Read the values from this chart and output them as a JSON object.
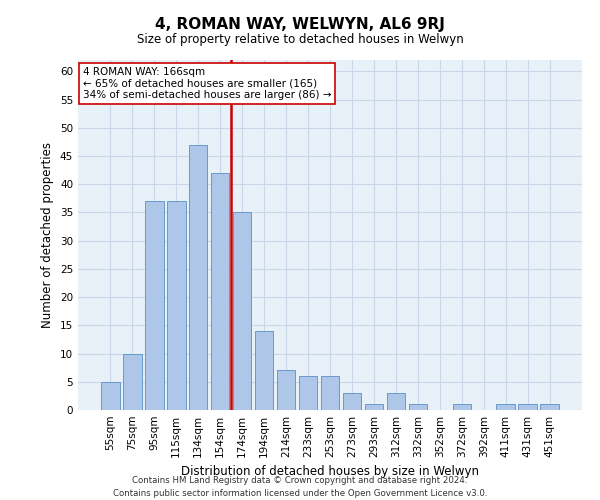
{
  "title1": "4, ROMAN WAY, WELWYN, AL6 9RJ",
  "title2": "Size of property relative to detached houses in Welwyn",
  "xlabel": "Distribution of detached houses by size in Welwyn",
  "ylabel": "Number of detached properties",
  "categories": [
    "55sqm",
    "75sqm",
    "95sqm",
    "115sqm",
    "134sqm",
    "154sqm",
    "174sqm",
    "194sqm",
    "214sqm",
    "233sqm",
    "253sqm",
    "273sqm",
    "293sqm",
    "312sqm",
    "332sqm",
    "352sqm",
    "372sqm",
    "392sqm",
    "411sqm",
    "431sqm",
    "451sqm"
  ],
  "values": [
    5,
    10,
    37,
    37,
    47,
    42,
    35,
    14,
    7,
    6,
    6,
    3,
    1,
    3,
    1,
    0,
    1,
    0,
    1,
    1,
    1
  ],
  "bar_color": "#aec6e8",
  "bar_edge_color": "#6699cc",
  "grid_color": "#c8d8e8",
  "bg_color": "#e8f0f8",
  "property_line_color": "#cc0000",
  "annotation_text": "4 ROMAN WAY: 166sqm\n← 65% of detached houses are smaller (165)\n34% of semi-detached houses are larger (86) →",
  "annotation_box_color": "#ffffff",
  "annotation_box_edge": "#cc0000",
  "footer": "Contains HM Land Registry data © Crown copyright and database right 2024.\nContains public sector information licensed under the Open Government Licence v3.0.",
  "ylim": [
    0,
    62
  ],
  "yticks": [
    0,
    5,
    10,
    15,
    20,
    25,
    30,
    35,
    40,
    45,
    50,
    55,
    60
  ]
}
